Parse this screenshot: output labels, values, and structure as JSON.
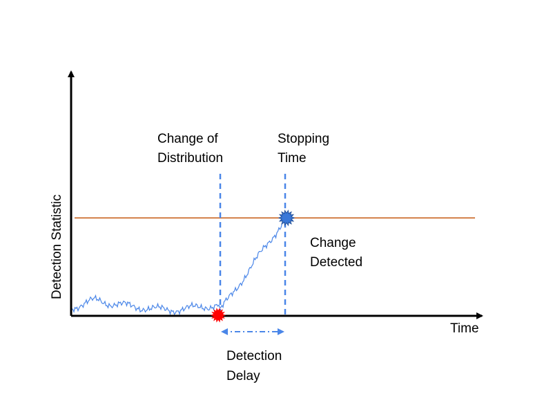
{
  "axes": {
    "x_label": "Time",
    "y_label": "Detection Statistic"
  },
  "annotations": {
    "change_of_distribution": [
      "Change of",
      "Distribution"
    ],
    "stopping_time": [
      "Stopping",
      "Time"
    ],
    "change_detected": [
      "Change",
      "Detected"
    ],
    "detection_delay": [
      "Detection",
      "Delay"
    ]
  }
}
